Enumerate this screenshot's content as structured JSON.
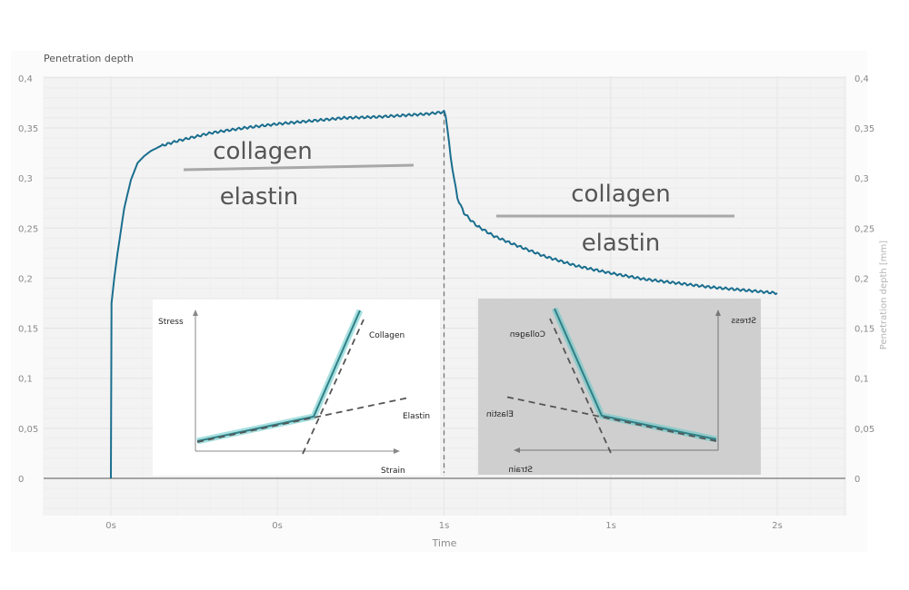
{
  "chart_data": [
    {
      "type": "line",
      "title": "Penetration depth",
      "xlabel": "Time",
      "ylabel_right": "Penetration depth [mm]",
      "ylim": [
        -0.03,
        0.4
      ],
      "yticks": [
        0,
        0.05,
        0.1,
        0.15,
        0.2,
        0.25,
        0.3,
        0.35,
        0.4
      ],
      "ytick_labels": [
        "0",
        "0,05",
        "0,1",
        "0,15",
        "0,2",
        "0,25",
        "0,3",
        "0,35",
        "0,4"
      ],
      "x_tick_labels": [
        "0s",
        "0s",
        "1s",
        "1s",
        "2s"
      ],
      "grid": true,
      "series": [
        {
          "color": "#1a6e8e",
          "x": [
            0,
            0.002,
            0.01,
            0.02,
            0.04,
            0.06,
            0.08,
            0.1,
            0.12,
            0.15,
            0.2,
            0.25,
            0.3,
            0.4,
            0.5,
            0.6,
            0.7,
            0.8,
            0.9,
            0.95,
            1.0,
            1.005,
            1.01,
            1.02,
            1.04,
            1.06,
            1.08,
            1.1,
            1.15,
            1.2,
            1.3,
            1.4,
            1.5,
            1.6,
            1.7,
            1.8,
            1.9,
            2.0
          ],
          "y": [
            0,
            0.175,
            0.2,
            0.225,
            0.27,
            0.298,
            0.315,
            0.322,
            0.327,
            0.332,
            0.337,
            0.341,
            0.345,
            0.35,
            0.354,
            0.357,
            0.36,
            0.361,
            0.363,
            0.364,
            0.366,
            0.362,
            0.35,
            0.32,
            0.28,
            0.265,
            0.258,
            0.252,
            0.242,
            0.235,
            0.222,
            0.212,
            0.205,
            0.199,
            0.195,
            0.191,
            0.188,
            0.185
          ]
        }
      ],
      "vline_x": 1.0,
      "annotations": [
        {
          "text": "collagen",
          "group": "left"
        },
        {
          "text": "elastin",
          "group": "left"
        },
        {
          "text": "collagen",
          "group": "right"
        },
        {
          "text": "elastin",
          "group": "right"
        }
      ]
    },
    {
      "type": "line",
      "title": "",
      "xlabel": "Strain",
      "ylabel": "Stress",
      "series": [
        {
          "name": "Collagen",
          "style": "dashed"
        },
        {
          "name": "Elastin",
          "style": "dashed"
        }
      ],
      "mirrored": false
    },
    {
      "type": "line",
      "title": "",
      "xlabel": "Strain",
      "ylabel": "Stress",
      "series": [
        {
          "name": "Collagen",
          "style": "dashed"
        },
        {
          "name": "Elastin",
          "style": "dashed"
        }
      ],
      "mirrored": true
    }
  ]
}
